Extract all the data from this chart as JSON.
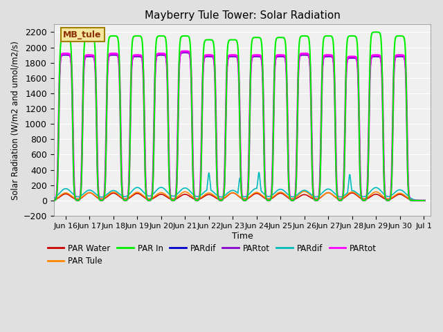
{
  "title": "Mayberry Tule Tower: Solar Radiation",
  "ylabel": "Solar Radiation (W/m2 and umol/m2/s)",
  "xlabel": "Time",
  "ylim": [
    -200,
    2300
  ],
  "yticks": [
    -200,
    0,
    200,
    400,
    600,
    800,
    1000,
    1200,
    1400,
    1600,
    1800,
    2000,
    2200
  ],
  "fig_bg_color": "#e0e0e0",
  "plot_bg_color": "#f0f0f0",
  "legend_label": "MB_tule",
  "legend_bg": "#f5e6a0",
  "legend_border": "#a08000",
  "series": {
    "PAR_Water": {
      "color": "#cc0000",
      "label": "PAR Water",
      "lw": 1.2
    },
    "PAR_Tule": {
      "color": "#ff8800",
      "label": "PAR Tule",
      "lw": 1.2
    },
    "PAR_In": {
      "color": "#00ee00",
      "label": "PAR In",
      "lw": 1.5
    },
    "PARdif1": {
      "color": "#0000cc",
      "label": "PARdif",
      "lw": 1.2
    },
    "PARtot1": {
      "color": "#8800cc",
      "label": "PARtot",
      "lw": 1.2
    },
    "PARdif2": {
      "color": "#00bbbb",
      "label": "PARdif",
      "lw": 1.2
    },
    "PARtot2": {
      "color": "#ff00ff",
      "label": "PARtot",
      "lw": 2.0
    }
  },
  "x_tick_labels": [
    "Jun 16",
    "Jun 17",
    "Jun 18",
    "Jun 19",
    "Jun 20",
    "Jun 21",
    "Jun 22",
    "Jun 23",
    "Jun 24",
    "Jun 25",
    "Jun 26",
    "Jun 27",
    "Jun 28",
    "Jun 29",
    "Jun 30",
    "Jul 1"
  ],
  "x_tick_positions": [
    16,
    17,
    18,
    19,
    20,
    21,
    22,
    23,
    24,
    25,
    26,
    27,
    28,
    29,
    30,
    31
  ]
}
